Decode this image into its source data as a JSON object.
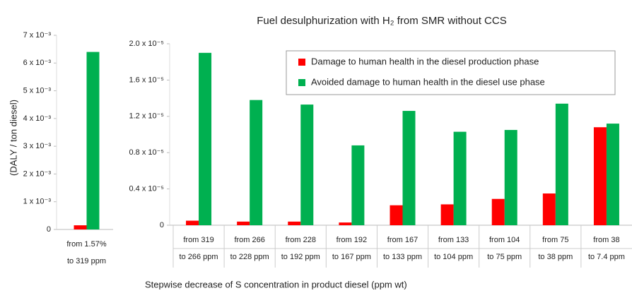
{
  "y_label": "(DALY / ton diesel)",
  "x_label": "Stepwise decrease of S concentration in product diesel (ppm wt)",
  "chart_data": [
    {
      "type": "bar",
      "categories": [
        [
          "from 1.57%",
          "to 319 ppm"
        ]
      ],
      "series": [
        {
          "color": "#ff0000",
          "values": [
            0.00015
          ]
        },
        {
          "color": "#00b050",
          "values": [
            0.0064
          ]
        }
      ],
      "ylim": [
        0,
        0.007
      ],
      "yticks": [
        0,
        {
          "value": 0.001,
          "label": "1 x 10⁻³"
        },
        {
          "value": 0.002,
          "label": "2 x 10⁻³"
        },
        {
          "value": 0.003,
          "label": "3 x 10⁻³"
        },
        {
          "value": 0.004,
          "label": "4 x 10⁻³"
        },
        {
          "value": 0.005,
          "label": "5 x 10⁻³"
        },
        {
          "value": 0.006,
          "label": "6 x 10⁻³"
        },
        {
          "value": 0.007,
          "label": "7 x 10⁻³"
        }
      ],
      "grid": false
    },
    {
      "type": "bar",
      "title": "Fuel desulphurization with H₂ from SMR without CCS",
      "categories": [
        [
          "from 319",
          "to 266 ppm"
        ],
        [
          "from 266",
          "to 228 ppm"
        ],
        [
          "from 228",
          "to 192 ppm"
        ],
        [
          "from 192",
          "to 167 ppm"
        ],
        [
          "from 167",
          "to 133 ppm"
        ],
        [
          "from 133",
          "to 104 ppm"
        ],
        [
          "from 104",
          "to 75 ppm"
        ],
        [
          "from 75",
          "to 38 ppm"
        ],
        [
          "from 38",
          "to 7.4 ppm"
        ]
      ],
      "series": [
        {
          "name": "Damage to human health in the diesel production phase",
          "color": "#ff0000",
          "values": [
            5e-07,
            4e-07,
            4e-07,
            3e-07,
            2.2e-06,
            2.3e-06,
            2.9e-06,
            3.5e-06,
            1.08e-05
          ]
        },
        {
          "name": "Avoided damage to human health in the diesel use phase",
          "color": "#00b050",
          "values": [
            1.9e-05,
            1.38e-05,
            1.33e-05,
            8.8e-06,
            1.26e-05,
            1.03e-05,
            1.05e-05,
            1.34e-05,
            1.12e-05
          ]
        }
      ],
      "ylim": [
        0,
        2e-05
      ],
      "yticks": [
        0,
        {
          "value": 4e-06,
          "label": "0.4 x 10⁻⁵"
        },
        {
          "value": 8e-06,
          "label": "0.8 x 10⁻⁵"
        },
        {
          "value": 1.2e-05,
          "label": "1.2 x 10⁻⁵"
        },
        {
          "value": 1.6e-05,
          "label": "1.6 x 10⁻⁵"
        },
        {
          "value": 2e-05,
          "label": "2.0 x 10⁻⁵"
        }
      ],
      "legend": "upper right",
      "grid": false
    }
  ]
}
